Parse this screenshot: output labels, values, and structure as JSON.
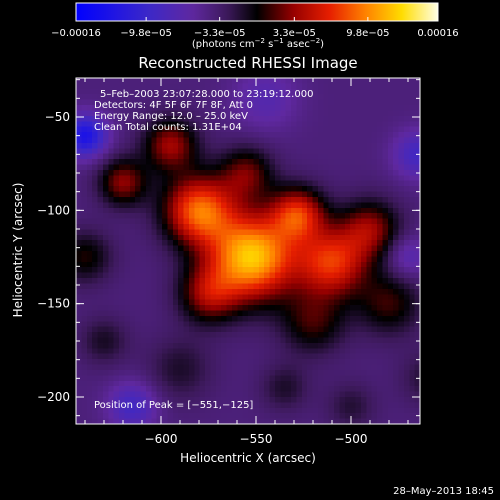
{
  "chart_data": {
    "type": "heatmap",
    "title": "Reconstructed RHESSI Image",
    "xlabel": "Heliocentric X (arcsec)",
    "ylabel": "Heliocentric Y (arcsec)",
    "xlim": [
      -647,
      -545
    ],
    "ylim": [
      -217,
      -27
    ],
    "x_ticks": [
      {
        "value": -600,
        "label": "−600"
      },
      {
        "value": -550,
        "label": "−550"
      },
      {
        "value": -500,
        "label": "−500"
      }
    ],
    "y_ticks": [
      {
        "value": -50,
        "label": "−50"
      },
      {
        "value": -100,
        "label": "−100"
      },
      {
        "value": -150,
        "label": "−150"
      },
      {
        "value": -200,
        "label": "−200"
      }
    ],
    "colorbar": {
      "range": [
        -0.00016,
        0.00016
      ],
      "ticks": [
        {
          "value": -0.00016,
          "label": "−0.00016"
        },
        {
          "value": -9.8e-05,
          "label": "−9.8e−05"
        },
        {
          "value": -3.3e-05,
          "label": "−3.3e−05"
        },
        {
          "value": 3.3e-05,
          "label": "3.3e−05"
        },
        {
          "value": 9.8e-05,
          "label": "9.8e−05"
        },
        {
          "value": 0.00016,
          "label": "0.00016"
        }
      ],
      "unit_base": "(photons cm",
      "unit_exp1": "−2",
      "unit_mid": " s",
      "unit_exp2": "−1",
      "unit_end": " asec",
      "unit_exp3": "−2",
      "unit_close": ")"
    },
    "annotations": [
      "5–Feb–2003 23:07:28.000 to 23:19:12.000",
      "Detectors: 4F 5F 6F 7F 8F, Att 0",
      "Energy Range: 12.0 – 25.0 keV",
      "Clean     Total counts: 1.31E+04"
    ],
    "peak_label": "Position of Peak = [−551,−125]",
    "peak": {
      "x": -551,
      "y": -125,
      "value": 0.00016
    },
    "sources": [
      {
        "x": -580,
        "y": -100,
        "sigma": 13,
        "value": 0.000125
      },
      {
        "x": -552,
        "y": -125,
        "sigma": 16,
        "value": 0.00016
      },
      {
        "x": -528,
        "y": -102,
        "sigma": 10,
        "value": 9.8e-05
      },
      {
        "x": -510,
        "y": -128,
        "sigma": 13,
        "value": 0.000105
      },
      {
        "x": -595,
        "y": -65,
        "sigma": 10,
        "value": 7.5e-05
      },
      {
        "x": -620,
        "y": -85,
        "sigma": 9,
        "value": 7e-05
      },
      {
        "x": -555,
        "y": -80,
        "sigma": 10,
        "value": 6e-05
      },
      {
        "x": -575,
        "y": -145,
        "sigma": 11,
        "value": 7e-05
      },
      {
        "x": -520,
        "y": -160,
        "sigma": 12,
        "value": 5e-05
      },
      {
        "x": -490,
        "y": -110,
        "sigma": 11,
        "value": 7e-05
      },
      {
        "x": -480,
        "y": -150,
        "sigma": 12,
        "value": 5e-05
      },
      {
        "x": -640,
        "y": -125,
        "sigma": 10,
        "value": 4.5e-05
      },
      {
        "x": -630,
        "y": -170,
        "sigma": 9,
        "value": 3e-05
      },
      {
        "x": -590,
        "y": -185,
        "sigma": 12,
        "value": 2.8e-05
      },
      {
        "x": -535,
        "y": -195,
        "sigma": 9,
        "value": 2.8e-05
      },
      {
        "x": -500,
        "y": -205,
        "sigma": 9,
        "value": 2.5e-05
      },
      {
        "x": -460,
        "y": -190,
        "sigma": 10,
        "value": 2.5e-05
      },
      {
        "x": -640,
        "y": -60,
        "sigma": 8,
        "value": -9e-05
      },
      {
        "x": -615,
        "y": -205,
        "sigma": 9,
        "value": -5e-05
      },
      {
        "x": -465,
        "y": -70,
        "sigma": 9,
        "value": -5e-05
      },
      {
        "x": -545,
        "y": -40,
        "sigma": 12,
        "value": -3e-05
      },
      {
        "x": -470,
        "y": -125,
        "sigma": 8,
        "value": -3.5e-05
      }
    ]
  },
  "footer": {
    "timestamp": "28–May–2013 18:45"
  }
}
